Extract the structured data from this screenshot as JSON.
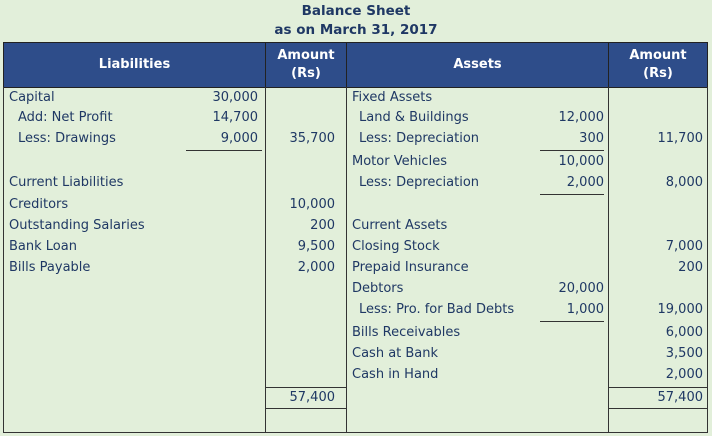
{
  "title": "Balance Sheet",
  "subtitle": "as on March 31, 2017",
  "header": {
    "liabilities": "Liabilities",
    "liabilities_amount": [
      "Amount",
      "(Rs)"
    ],
    "assets": "Assets",
    "assets_amount": [
      "Amount",
      "(Rs)"
    ]
  },
  "rows": [
    [
      "Capital",
      "30,000",
      null,
      "Fixed Assets",
      null,
      null
    ],
    [
      "Add: Net Profit",
      "14,700",
      null,
      "Land & Buildings",
      "12,000",
      null
    ],
    [
      "Less: Drawings",
      "9,000",
      "35,700",
      "Less: Depreciation",
      "300",
      "11,700"
    ],
    [
      null,
      null,
      null,
      "Motor Vehicles",
      "10,000",
      null
    ],
    [
      "Current Liabilities",
      null,
      null,
      "Less: Depreciation",
      "2,000",
      "8,000"
    ],
    [
      "Creditors",
      null,
      "10,000",
      null,
      null,
      null
    ],
    [
      "Outstanding Salaries",
      null,
      "200",
      "Current Assets",
      null,
      null
    ],
    [
      "Bank Loan",
      null,
      "9,500",
      "Closing Stock",
      null,
      "7,000"
    ],
    [
      "Bills Payable",
      null,
      "2,000",
      "Prepaid Insurance",
      null,
      "200"
    ],
    [
      null,
      null,
      null,
      "Debtors",
      "20,000",
      null
    ],
    [
      null,
      null,
      null,
      "Less: Pro. for Bad Debts",
      "1,000",
      "19,000"
    ],
    [
      null,
      null,
      null,
      "Bills Receivables",
      null,
      "6,000"
    ],
    [
      null,
      null,
      null,
      "Cash at Bank",
      null,
      "3,500"
    ],
    [
      null,
      null,
      null,
      "Cash in Hand",
      null,
      "2,000"
    ]
  ],
  "totals": {
    "liabilities": "57,400",
    "assets": "57,400"
  }
}
